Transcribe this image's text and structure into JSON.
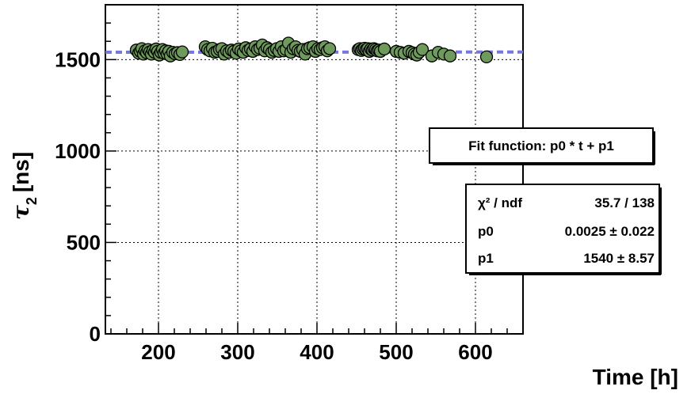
{
  "chart_data": {
    "type": "scatter",
    "xlabel": "Time [h]",
    "ylabel": "τ_2 [ns]",
    "ylabel_main": "τ",
    "ylabel_sub": "2",
    "ylabel_unit": "[ns]",
    "xlim": [
      133,
      660
    ],
    "ylim": [
      0,
      1800
    ],
    "x_ticks": [
      200,
      300,
      400,
      500,
      600
    ],
    "x_tick_labels": [
      "200",
      "300",
      "400",
      "500",
      "600"
    ],
    "y_ticks": [
      0,
      500,
      1000,
      1500
    ],
    "y_tick_labels": [
      "0",
      "500",
      "1000",
      "1500"
    ],
    "grid": true,
    "marker_color": "#6e9a5c",
    "fit_color": "#7777dd",
    "fit_line": {
      "p0": 0.0025,
      "p1": 1540
    },
    "fit_label": "Fit function: p0 * t + p1",
    "stats": [
      {
        "name": "χ² / ndf",
        "value": "35.7 / 138"
      },
      {
        "name": "p0",
        "value": "0.0025 ± 0.022"
      },
      {
        "name": "p1",
        "value": "1540 ± 8.57"
      }
    ],
    "x": [
      172,
      175,
      177,
      179,
      181,
      183,
      185,
      187,
      189,
      191,
      193,
      195,
      197,
      199,
      201,
      203,
      205,
      207,
      209,
      211,
      213,
      215,
      218,
      221,
      224,
      227,
      230,
      259,
      262,
      265,
      268,
      271,
      274,
      277,
      280,
      283,
      286,
      289,
      292,
      295,
      298,
      301,
      304,
      307,
      310,
      313,
      316,
      319,
      322,
      325,
      328,
      331,
      334,
      337,
      340,
      343,
      346,
      349,
      352,
      355,
      358,
      361,
      364,
      367,
      370,
      373,
      376,
      379,
      382,
      385,
      388,
      391,
      395,
      398,
      401,
      404,
      407,
      410,
      413,
      416,
      452,
      454,
      456,
      458,
      460,
      462,
      464,
      466,
      468,
      470,
      472,
      474,
      476,
      478,
      480,
      485,
      500,
      505,
      510,
      516,
      520,
      523,
      526,
      529,
      533,
      545,
      553,
      560,
      568,
      614
    ],
    "y": [
      1552,
      1535,
      1545,
      1560,
      1530,
      1548,
      1538,
      1555,
      1542,
      1530,
      1550,
      1540,
      1558,
      1545,
      1525,
      1540,
      1555,
      1535,
      1548,
      1530,
      1545,
      1520,
      1540,
      1532,
      1538,
      1528,
      1542,
      1570,
      1555,
      1548,
      1562,
      1540,
      1545,
      1555,
      1560,
      1530,
      1548,
      1540,
      1552,
      1545,
      1535,
      1558,
      1548,
      1540,
      1565,
      1550,
      1558,
      1545,
      1570,
      1555,
      1562,
      1580,
      1548,
      1565,
      1555,
      1540,
      1550,
      1560,
      1545,
      1570,
      1548,
      1555,
      1590,
      1540,
      1560,
      1570,
      1550,
      1545,
      1555,
      1530,
      1560,
      1565,
      1570,
      1545,
      1560,
      1555,
      1565,
      1570,
      1548,
      1560,
      1555,
      1560,
      1550,
      1558,
      1562,
      1555,
      1560,
      1545,
      1558,
      1552,
      1560,
      1555,
      1548,
      1552,
      1545,
      1558,
      1545,
      1540,
      1535,
      1545,
      1538,
      1530,
      1525,
      1540,
      1555,
      1520,
      1540,
      1530,
      1520,
      1515
    ]
  }
}
